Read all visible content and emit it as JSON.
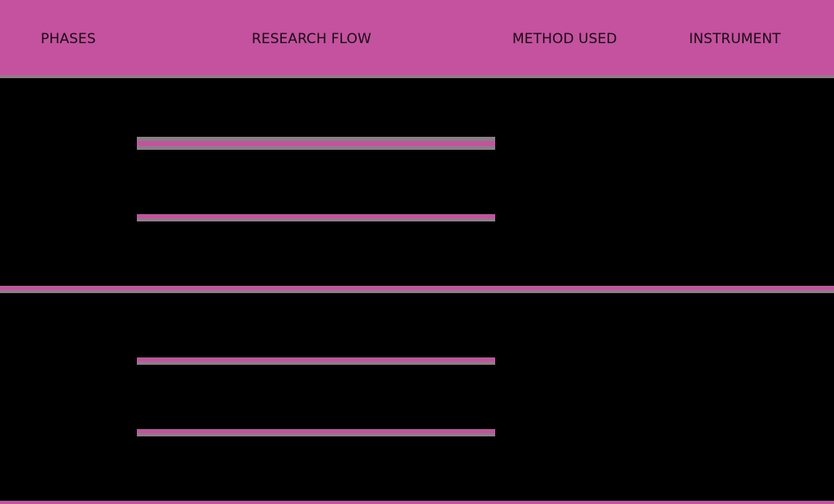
{
  "header": {
    "columns": [
      {
        "label": "PHASES"
      },
      {
        "label": "RESEARCH FLOW"
      },
      {
        "label": "METHOD USED"
      },
      {
        "label": "INSTRUMENT"
      }
    ]
  },
  "colors": {
    "header_background": "#c4529f",
    "body_background": "#000000",
    "rule_gray": "#8a7f86",
    "rule_pink": "#c4529f",
    "header_text": "#1a0a14"
  }
}
